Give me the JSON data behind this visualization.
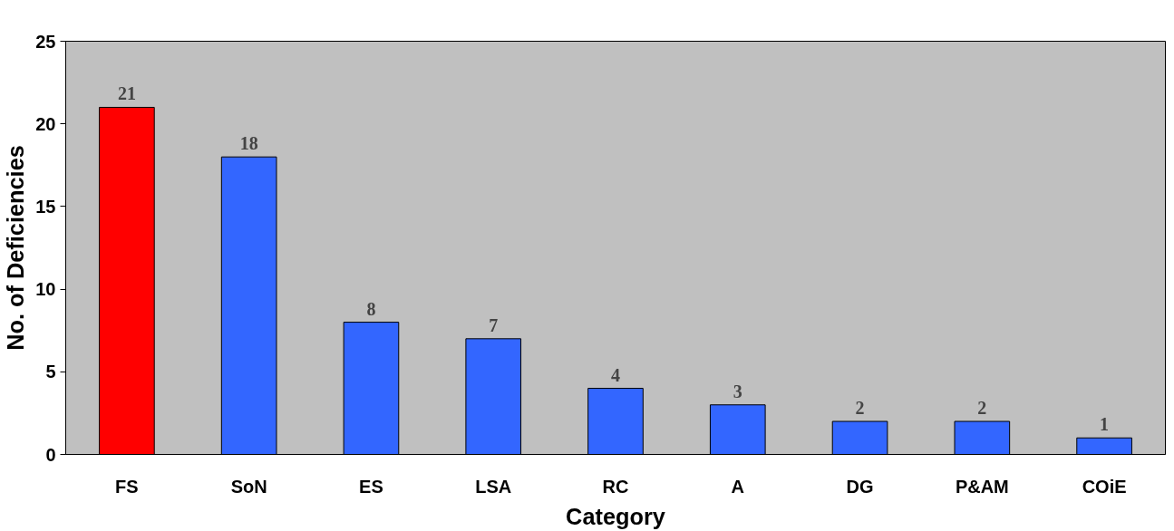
{
  "chart_data": {
    "type": "bar",
    "xlabel": "Category",
    "ylabel": "No. of Deficiencies",
    "categories": [
      "FS",
      "SoN",
      "ES",
      "LSA",
      "RC",
      "A",
      "DG",
      "P&AM",
      "COiE"
    ],
    "values": [
      21,
      18,
      8,
      7,
      4,
      3,
      2,
      2,
      1
    ],
    "colors": [
      "#ff0000",
      "#3366ff",
      "#3366ff",
      "#3366ff",
      "#3366ff",
      "#3366ff",
      "#3366ff",
      "#3366ff",
      "#3366ff"
    ],
    "ylim": [
      0,
      25
    ],
    "yticks": [
      0,
      5,
      10,
      15,
      20,
      25
    ],
    "grid": false,
    "data_labels": true
  }
}
